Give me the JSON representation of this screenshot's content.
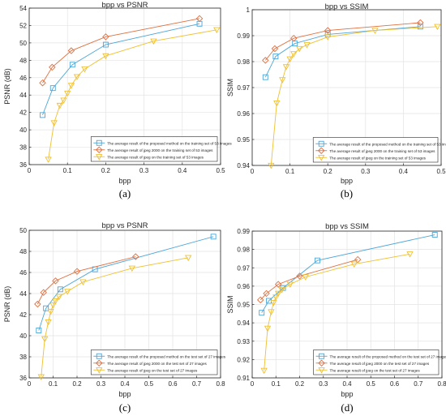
{
  "chart_data": [
    {
      "id": "a",
      "type": "line",
      "panel_label": "(a)",
      "title": "bpp vs PSNR",
      "xlabel": "bpp",
      "ylabel": "PSNR (dB)",
      "xlim": [
        0,
        0.5
      ],
      "ylim": [
        36,
        54
      ],
      "xticks": [
        0,
        0.1,
        0.2,
        0.3,
        0.4,
        0.5
      ],
      "yticks": [
        36,
        38,
        40,
        42,
        44,
        46,
        48,
        50,
        52,
        54
      ],
      "grid": true,
      "legend_position": "bottom-right",
      "series": [
        {
          "name": "The average result of the proposed method on the training set of 53 images",
          "color": "#4da6d9",
          "marker": "square",
          "points": [
            [
              0.035,
              41.7
            ],
            [
              0.062,
              44.8
            ],
            [
              0.113,
              47.5
            ],
            [
              0.2,
              49.8
            ],
            [
              0.445,
              52.2
            ]
          ]
        },
        {
          "name": "The average result of jpeg 2000 on the training set of 53 images",
          "color": "#e07040",
          "marker": "diamond",
          "points": [
            [
              0.035,
              45.4
            ],
            [
              0.06,
              47.2
            ],
            [
              0.11,
              49.1
            ],
            [
              0.2,
              50.7
            ],
            [
              0.445,
              52.8
            ]
          ]
        },
        {
          "name": "The average result of jpeg on the training set of 53 images",
          "color": "#f0c030",
          "marker": "triangle-down",
          "points": [
            [
              0.05,
              36.6
            ],
            [
              0.065,
              40.8
            ],
            [
              0.08,
              42.8
            ],
            [
              0.09,
              43.4
            ],
            [
              0.1,
              44.2
            ],
            [
              0.11,
              45.1
            ],
            [
              0.125,
              46.1
            ],
            [
              0.145,
              47.0
            ],
            [
              0.2,
              48.5
            ],
            [
              0.325,
              50.2
            ],
            [
              0.49,
              51.5
            ]
          ]
        }
      ]
    },
    {
      "id": "b",
      "type": "line",
      "panel_label": "(b)",
      "title": "bpp vs SSIM",
      "xlabel": "bpp",
      "ylabel": "SSIM",
      "xlim": [
        0,
        0.5
      ],
      "ylim": [
        0.94,
        1.0
      ],
      "xticks": [
        0,
        0.1,
        0.2,
        0.3,
        0.4,
        0.5
      ],
      "yticks": [
        0.94,
        0.95,
        0.96,
        0.97,
        0.98,
        0.99,
        1
      ],
      "grid": true,
      "legend_position": "bottom-right",
      "series": [
        {
          "name": "The average result of the proposed method on the training set of 53 images",
          "color": "#4da6d9",
          "marker": "square",
          "points": [
            [
              0.035,
              0.974
            ],
            [
              0.062,
              0.982
            ],
            [
              0.113,
              0.987
            ],
            [
              0.2,
              0.9905
            ],
            [
              0.445,
              0.9935
            ]
          ]
        },
        {
          "name": "The average result of jpeg 2000 on the training set of 53 images",
          "color": "#e07040",
          "marker": "diamond",
          "points": [
            [
              0.035,
              0.9805
            ],
            [
              0.06,
              0.985
            ],
            [
              0.11,
              0.989
            ],
            [
              0.2,
              0.992
            ],
            [
              0.445,
              0.995
            ]
          ]
        },
        {
          "name": "The average result of jpeg on the training set of 53 images",
          "color": "#f0c030",
          "marker": "triangle-down",
          "points": [
            [
              0.05,
              0.94
            ],
            [
              0.065,
              0.964
            ],
            [
              0.08,
              0.973
            ],
            [
              0.09,
              0.978
            ],
            [
              0.1,
              0.981
            ],
            [
              0.11,
              0.983
            ],
            [
              0.125,
              0.985
            ],
            [
              0.145,
              0.9865
            ],
            [
              0.2,
              0.9895
            ],
            [
              0.325,
              0.992
            ],
            [
              0.49,
              0.9935
            ]
          ]
        }
      ]
    },
    {
      "id": "c",
      "type": "line",
      "panel_label": "(c)",
      "title": "bpp vs PSNR",
      "xlabel": "bpp",
      "ylabel": "PSNR (dB)",
      "xlim": [
        0,
        0.8
      ],
      "ylim": [
        36,
        50
      ],
      "xticks": [
        0,
        0.1,
        0.2,
        0.3,
        0.4,
        0.5,
        0.6,
        0.7,
        0.8
      ],
      "yticks": [
        36,
        38,
        40,
        42,
        44,
        46,
        48,
        50
      ],
      "grid": true,
      "legend_position": "bottom-right",
      "series": [
        {
          "name": "The average result of the proposed method on the test set of 27 images",
          "color": "#4da6d9",
          "marker": "square",
          "points": [
            [
              0.04,
              40.5
            ],
            [
              0.07,
              42.6
            ],
            [
              0.13,
              44.4
            ],
            [
              0.275,
              46.3
            ],
            [
              0.77,
              49.4
            ]
          ]
        },
        {
          "name": "The average result of jpeg 2000 on the test set of 27 images",
          "color": "#e07040",
          "marker": "diamond",
          "points": [
            [
              0.035,
              43.0
            ],
            [
              0.06,
              44.1
            ],
            [
              0.11,
              45.2
            ],
            [
              0.2,
              46.1
            ],
            [
              0.445,
              47.5
            ]
          ]
        },
        {
          "name": "The average result of jpeg on the test set of 27 images",
          "color": "#f0c030",
          "marker": "triangle-down",
          "points": [
            [
              0.05,
              36.1
            ],
            [
              0.065,
              39.7
            ],
            [
              0.08,
              41.3
            ],
            [
              0.09,
              42.3
            ],
            [
              0.1,
              42.9
            ],
            [
              0.11,
              43.3
            ],
            [
              0.125,
              43.7
            ],
            [
              0.16,
              44.2
            ],
            [
              0.225,
              45.1
            ],
            [
              0.43,
              46.4
            ],
            [
              0.665,
              47.4
            ]
          ]
        }
      ]
    },
    {
      "id": "d",
      "type": "line",
      "panel_label": "(d)",
      "title": "bpp vs SSIM",
      "xlabel": "bpp",
      "ylabel": "SSIM",
      "xlim": [
        0,
        0.8
      ],
      "ylim": [
        0.91,
        0.99
      ],
      "xticks": [
        0,
        0.1,
        0.2,
        0.3,
        0.4,
        0.5,
        0.6,
        0.7,
        0.8
      ],
      "yticks": [
        0.91,
        0.92,
        0.93,
        0.94,
        0.95,
        0.96,
        0.97,
        0.98,
        0.99
      ],
      "grid": true,
      "legend_position": "bottom-right",
      "series": [
        {
          "name": "The average result of the proposed method on the test set of 27 images",
          "color": "#4da6d9",
          "marker": "square",
          "points": [
            [
              0.04,
              0.9455
            ],
            [
              0.07,
              0.952
            ],
            [
              0.13,
              0.959
            ],
            [
              0.275,
              0.974
            ],
            [
              0.77,
              0.988
            ]
          ]
        },
        {
          "name": "The average result of jpeg 2000 on the test set of 27 images",
          "color": "#e07040",
          "marker": "diamond",
          "points": [
            [
              0.035,
              0.9525
            ],
            [
              0.06,
              0.956
            ],
            [
              0.11,
              0.961
            ],
            [
              0.2,
              0.9655
            ],
            [
              0.445,
              0.9745
            ]
          ]
        },
        {
          "name": "The average result of jpeg on the test set of 27 images",
          "color": "#f0c030",
          "marker": "triangle-down",
          "points": [
            [
              0.05,
              0.914
            ],
            [
              0.065,
              0.937
            ],
            [
              0.08,
              0.946
            ],
            [
              0.09,
              0.951
            ],
            [
              0.1,
              0.954
            ],
            [
              0.11,
              0.956
            ],
            [
              0.125,
              0.958
            ],
            [
              0.16,
              0.961
            ],
            [
              0.225,
              0.965
            ],
            [
              0.43,
              0.972
            ],
            [
              0.665,
              0.9775
            ]
          ]
        }
      ]
    }
  ]
}
